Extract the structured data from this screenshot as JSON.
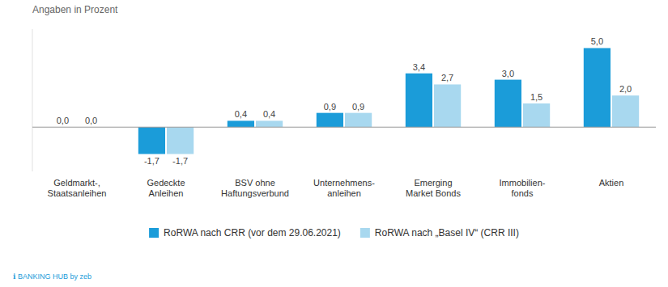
{
  "chart_data": {
    "type": "bar",
    "subtitle": "Angaben in Prozent",
    "categories": [
      "Geldmarkt-,\nStaatsanleihen",
      "Gedeckte\nAnleihen",
      "BSV ohne\nHaftungsverbund",
      "Unternehmens-\nanleihen",
      "Emerging\nMarket Bonds",
      "Immobilien-\nfonds",
      "Aktien"
    ],
    "series": [
      {
        "name": "RoRWA nach CRR (vor dem 29.06.2021)",
        "color": "#1B9CD9",
        "values": [
          0.0,
          -1.7,
          0.4,
          0.9,
          3.4,
          3.0,
          5.0
        ],
        "value_labels": [
          "0,0",
          "-1,7",
          "0,4",
          "0,9",
          "3,4",
          "3,0",
          "5,0"
        ]
      },
      {
        "name": "RoRWA nach „Basel IV“ (CRR III)",
        "color": "#A8D8EF",
        "values": [
          0.0,
          -1.7,
          0.4,
          0.9,
          2.7,
          1.5,
          2.0
        ],
        "value_labels": [
          "0,0",
          "-1,7",
          "0,4",
          "0,9",
          "2,7",
          "1,5",
          "2,0"
        ]
      }
    ],
    "ylim": [
      -2.8,
      6.2
    ],
    "data_labels": true,
    "tick_labels": "x",
    "legend": "bottom",
    "annotations": [
      "ℹ︎ BANKING HUB by zeb"
    ]
  }
}
